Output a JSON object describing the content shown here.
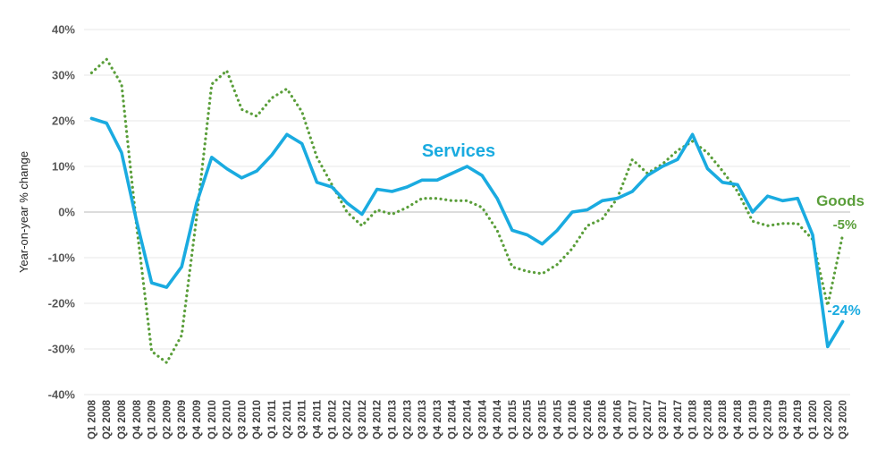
{
  "chart_data": {
    "type": "line",
    "title": "",
    "xlabel": "",
    "ylabel": "Year-on-year % change",
    "ylim": [
      -40,
      40
    ],
    "yticks": [
      -40,
      -30,
      -20,
      -10,
      0,
      10,
      20,
      30,
      40
    ],
    "ytick_labels": [
      "-40%",
      "-30%",
      "-20%",
      "-10%",
      "0%",
      "10%",
      "20%",
      "30%",
      "40%"
    ],
    "grid": "horizontal",
    "legend": "none (series labelled directly on chart)",
    "categories": [
      "Q1 2008",
      "Q2 2008",
      "Q3 2008",
      "Q4 2008",
      "Q1 2009",
      "Q2 2009",
      "Q3 2009",
      "Q4 2009",
      "Q1 2010",
      "Q2 2010",
      "Q3 2010",
      "Q4 2010",
      "Q1 2011",
      "Q2 2011",
      "Q3 2011",
      "Q4 2011",
      "Q1 2012",
      "Q2 2012",
      "Q3 2012",
      "Q4 2012",
      "Q1 2013",
      "Q2 2013",
      "Q3 2013",
      "Q4 2013",
      "Q1 2014",
      "Q2 2014",
      "Q3 2014",
      "Q4 2014",
      "Q1 2015",
      "Q2 2015",
      "Q3 2015",
      "Q4 2015",
      "Q1 2016",
      "Q2 2016",
      "Q3 2016",
      "Q4 2016",
      "Q1 2017",
      "Q2 2017",
      "Q3 2017",
      "Q4 2017",
      "Q1 2018",
      "Q2 2018",
      "Q3 2018",
      "Q4 2018",
      "Q1 2019",
      "Q2 2019",
      "Q3 2019",
      "Q4 2019",
      "Q1 2020",
      "Q2 2020",
      "Q3 2020"
    ],
    "series": [
      {
        "name": "Services",
        "color": "#1aabe0",
        "style": "solid",
        "end_label": "-24%",
        "values": [
          20.5,
          19.5,
          13,
          -2,
          -15.5,
          -16.5,
          -12,
          2,
          12,
          9.5,
          7.5,
          9,
          12.5,
          17,
          15,
          6.5,
          5.5,
          2,
          -0.5,
          5,
          4.5,
          5.5,
          7,
          7,
          8.5,
          10,
          8,
          3,
          -4,
          -5,
          -7,
          -4,
          0,
          0.5,
          2.5,
          3,
          4.5,
          8,
          10,
          11.5,
          17,
          9.5,
          6.5,
          6,
          0,
          3.5,
          2.5,
          3,
          -5,
          -29.5,
          -24
        ]
      },
      {
        "name": "Goods",
        "color": "#5a9e3a",
        "style": "dotted",
        "end_label": "-5%",
        "values": [
          30.5,
          33.5,
          28,
          -3,
          -30.5,
          -33,
          -27,
          -1,
          28,
          31,
          22.5,
          21,
          25,
          27,
          22,
          12,
          6,
          0,
          -3,
          0.5,
          -0.5,
          1,
          3,
          3,
          2.5,
          2.5,
          1,
          -4,
          -12,
          -13,
          -13.5,
          -11.5,
          -8,
          -3,
          -1.5,
          3,
          11.5,
          8.5,
          10.5,
          13.5,
          15.5,
          13,
          9,
          4.5,
          -2,
          -3,
          -2.5,
          -2.5,
          -6,
          -20.5,
          -5
        ]
      }
    ]
  }
}
